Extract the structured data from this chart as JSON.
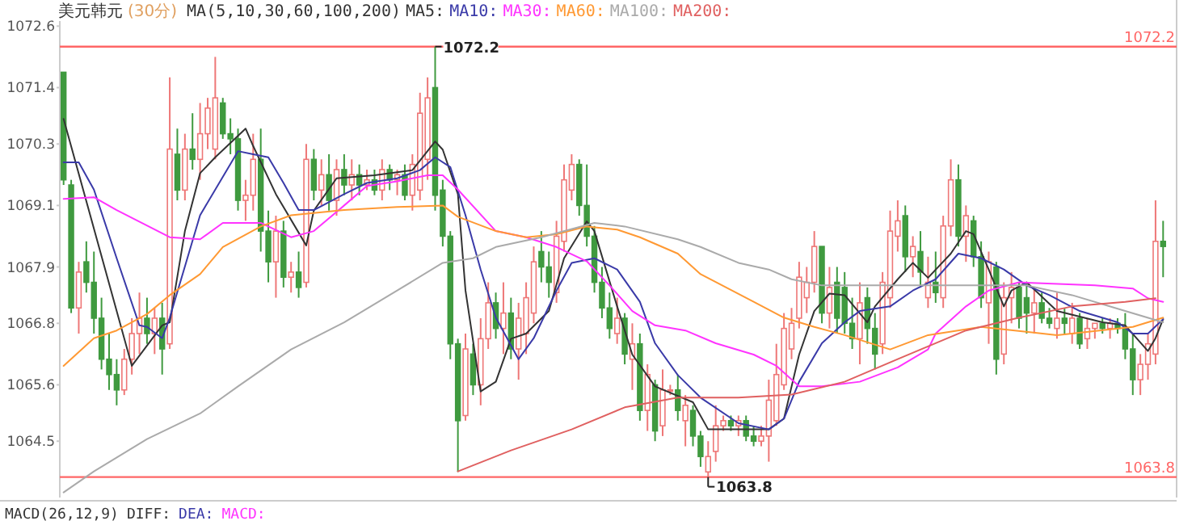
{
  "chart_data": {
    "type": "candlestick",
    "title": "美元韩元",
    "subtitle": "(30分)",
    "legend_title": "MA(5,10,30,60,100,200)",
    "legend": "top",
    "categories": [
      null,
      null,
      null,
      null,
      null,
      null,
      null,
      null,
      null,
      null,
      null,
      null,
      null,
      null,
      null,
      null,
      null,
      null,
      null,
      null,
      null,
      null,
      null,
      null,
      null,
      null,
      null,
      null,
      null,
      null,
      null,
      null,
      null,
      null,
      null,
      null,
      null,
      null,
      null,
      null,
      null,
      null,
      null,
      null,
      null,
      null,
      null,
      null,
      null,
      null,
      null,
      null,
      null,
      null,
      null,
      null,
      null,
      null,
      null,
      null,
      null,
      null,
      null,
      null,
      null,
      null,
      null,
      null,
      null,
      null,
      null,
      null,
      null,
      null,
      null,
      null,
      null,
      null,
      null,
      null,
      null,
      null,
      null,
      null,
      null,
      null,
      null,
      null,
      null,
      null,
      null,
      null,
      null,
      null,
      null,
      null,
      null,
      null,
      null,
      null,
      null,
      null,
      null,
      null,
      null,
      null,
      null,
      null,
      null,
      null,
      null,
      null,
      null,
      null,
      null,
      null,
      null,
      null,
      null,
      null,
      null,
      null,
      null,
      null,
      null,
      null,
      null,
      null,
      null,
      null,
      null,
      null,
      null,
      null,
      null,
      null,
      null,
      null,
      null,
      null,
      null,
      null,
      null,
      null,
      null,
      null
    ],
    "ohlc": [
      [
        1071.7,
        1071.7,
        1069.5,
        1069.6
      ],
      [
        1069.5,
        1069.6,
        1067.0,
        1067.1
      ],
      [
        1067.1,
        1068.0,
        1066.6,
        1067.8
      ],
      [
        1068.0,
        1068.4,
        1067.4,
        1067.6
      ],
      [
        1067.6,
        1068.2,
        1066.6,
        1066.9
      ],
      [
        1066.9,
        1067.3,
        1065.9,
        1066.1
      ],
      [
        1066.1,
        1066.6,
        1065.5,
        1065.8
      ],
      [
        1065.8,
        1066.1,
        1065.2,
        1065.5
      ],
      [
        1065.5,
        1066.3,
        1065.4,
        1066.1
      ],
      [
        1066.1,
        1066.9,
        1065.8,
        1066.6
      ],
      [
        1066.6,
        1067.4,
        1066.2,
        1066.9
      ],
      [
        1066.9,
        1067.3,
        1066.4,
        1066.6
      ],
      [
        1066.6,
        1067.1,
        1066.2,
        1066.9
      ],
      [
        1066.9,
        1067.2,
        1065.8,
        1066.3
      ],
      [
        1066.4,
        1071.6,
        1066.3,
        1070.2
      ],
      [
        1070.1,
        1070.6,
        1069.2,
        1069.4
      ],
      [
        1069.4,
        1070.5,
        1069.2,
        1070.2
      ],
      [
        1070.2,
        1070.9,
        1069.8,
        1070.0
      ],
      [
        1070.0,
        1071.1,
        1069.6,
        1070.5
      ],
      [
        1070.5,
        1071.2,
        1070.2,
        1071.0
      ],
      [
        1070.2,
        1072.0,
        1070.0,
        1071.2
      ],
      [
        1071.1,
        1071.2,
        1070.4,
        1070.5
      ],
      [
        1070.5,
        1070.8,
        1070.1,
        1070.4
      ],
      [
        1070.4,
        1070.6,
        1069.0,
        1069.2
      ],
      [
        1069.2,
        1069.6,
        1068.8,
        1069.3
      ],
      [
        1069.3,
        1070.5,
        1069.0,
        1070.0
      ],
      [
        1070.0,
        1070.6,
        1068.2,
        1068.6
      ],
      [
        1068.6,
        1069.0,
        1067.6,
        1068.0
      ],
      [
        1068.0,
        1068.9,
        1067.3,
        1068.6
      ],
      [
        1068.6,
        1068.8,
        1067.5,
        1067.7
      ],
      [
        1067.7,
        1068.0,
        1067.4,
        1067.8
      ],
      [
        1067.8,
        1068.2,
        1067.3,
        1067.5
      ],
      [
        1067.6,
        1070.3,
        1067.5,
        1070.0
      ],
      [
        1070.0,
        1070.2,
        1069.2,
        1069.4
      ],
      [
        1069.4,
        1070.0,
        1069.1,
        1069.7
      ],
      [
        1069.7,
        1070.1,
        1069.0,
        1069.2
      ],
      [
        1069.2,
        1070.0,
        1068.9,
        1069.8
      ],
      [
        1069.8,
        1070.1,
        1069.3,
        1069.5
      ],
      [
        1069.5,
        1070.0,
        1069.2,
        1069.7
      ],
      [
        1069.7,
        1069.9,
        1069.3,
        1069.5
      ],
      [
        1069.5,
        1069.8,
        1069.4,
        1069.6
      ],
      [
        1069.6,
        1069.8,
        1069.3,
        1069.4
      ],
      [
        1069.4,
        1070.0,
        1069.2,
        1069.8
      ],
      [
        1069.8,
        1069.9,
        1069.4,
        1069.6
      ],
      [
        1069.6,
        1069.8,
        1069.3,
        1069.7
      ],
      [
        1069.7,
        1069.9,
        1069.2,
        1069.3
      ],
      [
        1069.3,
        1070.1,
        1069.0,
        1069.9
      ],
      [
        1069.4,
        1071.3,
        1069.2,
        1070.9
      ],
      [
        1070.0,
        1071.6,
        1069.6,
        1071.2
      ],
      [
        1071.4,
        1072.2,
        1069.0,
        1069.3
      ],
      [
        1069.4,
        1069.6,
        1068.3,
        1068.5
      ],
      [
        1068.5,
        1068.6,
        1066.1,
        1066.4
      ],
      [
        1066.4,
        1066.5,
        1063.9,
        1064.9
      ],
      [
        1065.0,
        1066.6,
        1064.9,
        1066.3
      ],
      [
        1066.2,
        1066.4,
        1065.4,
        1065.6
      ],
      [
        1065.6,
        1066.9,
        1065.2,
        1066.5
      ],
      [
        1066.5,
        1067.6,
        1066.3,
        1067.2
      ],
      [
        1067.2,
        1067.4,
        1066.5,
        1066.7
      ],
      [
        1066.7,
        1067.6,
        1066.2,
        1067.0
      ],
      [
        1067.0,
        1067.3,
        1066.1,
        1066.3
      ],
      [
        1066.3,
        1067.2,
        1065.7,
        1066.9
      ],
      [
        1066.6,
        1067.6,
        1066.2,
        1067.3
      ],
      [
        1067.0,
        1068.3,
        1066.8,
        1068.0
      ],
      [
        1068.2,
        1068.6,
        1067.6,
        1067.9
      ],
      [
        1067.9,
        1068.2,
        1067.3,
        1067.6
      ],
      [
        1067.4,
        1068.8,
        1067.2,
        1068.5
      ],
      [
        1068.4,
        1069.9,
        1068.2,
        1069.6
      ],
      [
        1069.4,
        1070.1,
        1069.2,
        1069.9
      ],
      [
        1069.9,
        1070.0,
        1068.9,
        1069.1
      ],
      [
        1069.1,
        1069.9,
        1068.3,
        1068.5
      ],
      [
        1068.5,
        1068.7,
        1067.4,
        1067.6
      ],
      [
        1067.6,
        1067.9,
        1066.9,
        1067.1
      ],
      [
        1067.1,
        1067.4,
        1066.5,
        1066.7
      ],
      [
        1066.6,
        1067.3,
        1066.4,
        1066.9
      ],
      [
        1066.9,
        1067.0,
        1066.0,
        1066.2
      ],
      [
        1066.1,
        1066.8,
        1065.5,
        1066.4
      ],
      [
        1066.4,
        1066.6,
        1064.9,
        1065.1
      ],
      [
        1065.1,
        1066.0,
        1064.7,
        1065.8
      ],
      [
        1065.6,
        1065.7,
        1064.5,
        1064.7
      ],
      [
        1064.8,
        1065.9,
        1064.6,
        1065.5
      ],
      [
        1065.5,
        1065.6,
        1065.4,
        1065.5
      ],
      [
        1065.5,
        1065.8,
        1064.9,
        1065.1
      ],
      [
        1064.9,
        1065.4,
        1064.4,
        1065.2
      ],
      [
        1065.1,
        1065.2,
        1064.4,
        1064.6
      ],
      [
        1064.6,
        1064.7,
        1064.0,
        1064.2
      ],
      [
        1063.9,
        1064.5,
        1063.8,
        1064.2
      ],
      [
        1064.3,
        1065.2,
        1064.1,
        1064.8
      ],
      [
        1064.8,
        1065.0,
        1064.7,
        1064.9
      ],
      [
        1064.9,
        1065.0,
        1064.7,
        1064.8
      ],
      [
        1064.8,
        1065.0,
        1064.6,
        1064.9
      ],
      [
        1064.9,
        1065.0,
        1064.5,
        1064.6
      ],
      [
        1064.6,
        1064.8,
        1064.4,
        1064.5
      ],
      [
        1064.5,
        1064.8,
        1064.4,
        1064.6
      ],
      [
        1064.6,
        1065.7,
        1064.1,
        1065.3
      ],
      [
        1064.9,
        1066.4,
        1064.8,
        1065.8
      ],
      [
        1065.6,
        1067.0,
        1065.5,
        1066.7
      ],
      [
        1066.3,
        1067.1,
        1066.1,
        1066.8
      ],
      [
        1066.9,
        1068.0,
        1066.7,
        1067.7
      ],
      [
        1067.3,
        1067.9,
        1067.0,
        1067.6
      ],
      [
        1067.6,
        1068.6,
        1067.4,
        1068.3
      ],
      [
        1068.3,
        1068.3,
        1066.8,
        1067.0
      ],
      [
        1067.0,
        1067.9,
        1066.7,
        1067.5
      ],
      [
        1067.6,
        1067.9,
        1066.6,
        1066.9
      ],
      [
        1067.5,
        1067.8,
        1066.6,
        1066.8
      ],
      [
        1066.8,
        1067.3,
        1066.3,
        1066.5
      ],
      [
        1066.5,
        1067.6,
        1066.0,
        1067.2
      ],
      [
        1067.3,
        1067.5,
        1066.4,
        1066.7
      ],
      [
        1066.7,
        1067.0,
        1065.9,
        1066.2
      ],
      [
        1066.4,
        1067.8,
        1066.2,
        1067.6
      ],
      [
        1067.3,
        1069.0,
        1067.1,
        1068.6
      ],
      [
        1068.5,
        1069.2,
        1068.2,
        1068.8
      ],
      [
        1068.9,
        1069.1,
        1067.8,
        1068.1
      ],
      [
        1068.1,
        1068.5,
        1067.7,
        1068.3
      ],
      [
        1068.2,
        1068.6,
        1067.5,
        1067.8
      ],
      [
        1067.3,
        1068.1,
        1067.1,
        1067.6
      ],
      [
        1067.6,
        1068.2,
        1067.2,
        1067.4
      ],
      [
        1067.3,
        1068.9,
        1067.1,
        1068.7
      ],
      [
        1068.7,
        1070.0,
        1068.5,
        1069.6
      ],
      [
        1069.6,
        1069.9,
        1068.3,
        1068.5
      ],
      [
        1068.5,
        1069.1,
        1068.0,
        1068.9
      ],
      [
        1068.8,
        1068.9,
        1067.9,
        1068.1
      ],
      [
        1068.1,
        1068.4,
        1067.1,
        1067.3
      ],
      [
        1067.2,
        1068.2,
        1066.4,
        1068.0
      ],
      [
        1067.9,
        1068.0,
        1065.8,
        1066.1
      ],
      [
        1066.2,
        1067.6,
        1066.0,
        1067.3
      ],
      [
        1067.3,
        1067.8,
        1066.8,
        1067.5
      ],
      [
        1067.5,
        1067.6,
        1066.7,
        1066.9
      ],
      [
        1067.3,
        1067.6,
        1066.6,
        1067.0
      ],
      [
        1067.0,
        1067.5,
        1066.6,
        1067.2
      ],
      [
        1067.2,
        1067.4,
        1066.8,
        1066.9
      ],
      [
        1066.9,
        1067.1,
        1066.7,
        1066.8
      ],
      [
        1066.7,
        1067.4,
        1066.5,
        1066.9
      ],
      [
        1066.9,
        1067.1,
        1066.6,
        1066.8
      ],
      [
        1066.6,
        1067.2,
        1066.4,
        1066.9
      ],
      [
        1066.9,
        1067.0,
        1066.3,
        1066.4
      ],
      [
        1066.5,
        1066.9,
        1066.3,
        1066.7
      ],
      [
        1066.7,
        1066.8,
        1066.5,
        1066.8
      ],
      [
        1066.8,
        1066.9,
        1066.6,
        1066.7
      ],
      [
        1066.7,
        1066.9,
        1066.5,
        1066.8
      ],
      [
        1066.8,
        1066.9,
        1066.6,
        1066.7
      ],
      [
        1066.7,
        1067.0,
        1066.1,
        1066.3
      ],
      [
        1066.3,
        1066.6,
        1065.4,
        1065.7
      ],
      [
        1065.7,
        1066.2,
        1065.4,
        1066.0
      ],
      [
        1066.0,
        1066.6,
        1065.7,
        1066.4
      ],
      [
        1066.2,
        1069.2,
        1066.0,
        1068.4
      ],
      [
        1068.4,
        1068.8,
        1067.7,
        1068.3
      ]
    ],
    "series": [
      {
        "type": "line",
        "name": "MA5:",
        "color": "#333333",
        "values": [
          1070.79,
          null,
          null,
          null,
          null,
          null,
          null,
          null,
          null,
          1065.97,
          null,
          null,
          null,
          1066.76,
          1066.82,
          null,
          1068.6,
          null,
          1069.73,
          null,
          1070.04,
          null,
          null,
          null,
          1070.6,
          1070.26,
          null,
          null,
          1069.32,
          null,
          null,
          null,
          1068.32,
          1069.0,
          null,
          null,
          1069.63,
          null,
          null,
          null,
          null,
          1069.69,
          null,
          null,
          null,
          null,
          1069.79,
          null,
          null,
          1070.35,
          1070.19,
          null,
          1069.32,
          1067.44,
          null,
          1065.47,
          null,
          1065.66,
          null,
          1066.5,
          null,
          1066.6,
          null,
          null,
          1067.04,
          null,
          1068.07,
          null,
          null,
          1068.79,
          1068.6,
          null,
          null,
          1067.13,
          null,
          1066.19,
          null,
          null,
          1065.57,
          null,
          null,
          null,
          null,
          1065.26,
          null,
          1064.73,
          null,
          null,
          null,
          null,
          1064.73,
          null,
          null,
          1064.73,
          null,
          1064.94,
          null,
          1066.19,
          null,
          1067.04,
          null,
          1067.38,
          null,
          1067.35,
          null,
          null,
          1066.82,
          1067.13,
          null,
          null,
          1067.66,
          null,
          1067.98,
          null,
          1067.69,
          null,
          null,
          1068.16,
          null,
          1068.6,
          1068.54,
          null,
          1067.85,
          null,
          1067.13,
          1067.44,
          null,
          1067.6,
          null,
          null,
          null,
          1067.04,
          null,
          null,
          null,
          null,
          null,
          1066.82,
          null,
          null,
          1066.76,
          null,
          null,
          1066.26,
          1066.51,
          1066.88
        ]
      },
      {
        "type": "line",
        "name": "MA10:",
        "color": "#3a3aa8",
        "values": [
          1069.94,
          null,
          1069.94,
          null,
          1069.41,
          null,
          null,
          1068.07,
          null,
          null,
          1066.76,
          1066.73,
          null,
          1066.51,
          1066.91,
          null,
          null,
          null,
          1068.91,
          null,
          null,
          null,
          null,
          1070.16,
          null,
          1070.1,
          null,
          1070.04,
          null,
          1069.54,
          null,
          1069.01,
          null,
          1069.01,
          null,
          null,
          null,
          1069.32,
          null,
          null,
          1069.54,
          null,
          null,
          null,
          1069.63,
          null,
          null,
          1069.79,
          null,
          1070.04,
          null,
          1069.85,
          null,
          1068.91,
          null,
          1067.85,
          null,
          1066.91,
          null,
          null,
          1066.1,
          null,
          1066.51,
          null,
          null,
          1067.44,
          null,
          1067.98,
          null,
          null,
          1068.07,
          null,
          null,
          1067.85,
          null,
          null,
          1067.22,
          null,
          1066.41,
          null,
          null,
          1065.79,
          null,
          null,
          1065.35,
          null,
          null,
          null,
          null,
          1064.85,
          null,
          null,
          null,
          1064.73,
          null,
          1064.94,
          null,
          1065.66,
          null,
          null,
          1066.41,
          null,
          null,
          1066.82,
          null,
          1067.04,
          null,
          null,
          null,
          1067.13,
          null,
          null,
          1067.44,
          null,
          null,
          1067.66,
          null,
          null,
          1068.16,
          null,
          null,
          1068.07,
          null,
          null,
          1067.85,
          null,
          null,
          1067.54,
          null,
          null,
          1067.35,
          null,
          null,
          null,
          1067.04,
          null,
          null,
          null,
          null,
          1066.82,
          null,
          1066.6,
          null,
          1066.6,
          null,
          1066.88
        ]
      },
      {
        "type": "line",
        "name": "MA30:",
        "color": "#ff33ff",
        "values": [
          1069.23,
          null,
          null,
          null,
          1069.26,
          null,
          null,
          1069.01,
          null,
          null,
          null,
          null,
          null,
          null,
          1068.48,
          null,
          null,
          null,
          1068.44,
          null,
          null,
          1068.76,
          null,
          null,
          null,
          null,
          1068.76,
          null,
          null,
          null,
          1068.48,
          null,
          null,
          1068.6,
          null,
          null,
          null,
          1069.1,
          null,
          null,
          1069.48,
          null,
          null,
          null,
          1069.57,
          null,
          null,
          null,
          1069.69,
          null,
          1069.69,
          null,
          1069.41,
          null,
          null,
          null,
          null,
          1068.6,
          null,
          null,
          null,
          1068.48,
          null,
          null,
          null,
          1068.29,
          null,
          null,
          null,
          1068.01,
          null,
          null,
          1067.54,
          null,
          null,
          1067.04,
          null,
          null,
          1066.76,
          null,
          null,
          null,
          1066.66,
          null,
          null,
          null,
          1066.41,
          null,
          null,
          null,
          null,
          1066.19,
          null,
          null,
          1065.97,
          null,
          null,
          1065.57,
          null,
          null,
          1065.57,
          null,
          null,
          null,
          null,
          1065.66,
          null,
          null,
          null,
          null,
          1065.94,
          null,
          null,
          null,
          1066.29,
          1066.6,
          null,
          null,
          null,
          1067.13,
          null,
          null,
          1067.44,
          null,
          null,
          null,
          1067.6,
          null,
          null,
          null,
          null,
          null,
          null,
          null,
          null,
          null,
          1067.54,
          null,
          null,
          null,
          null,
          1067.48,
          null,
          1067.29,
          null,
          1067.22
        ]
      },
      {
        "type": "line",
        "name": "MA60:",
        "color": "#ff9933",
        "values": [
          1065.97,
          null,
          null,
          null,
          1066.51,
          null,
          null,
          1066.66,
          null,
          null,
          null,
          1066.98,
          null,
          null,
          1067.35,
          null,
          null,
          null,
          1067.76,
          null,
          null,
          1068.29,
          null,
          null,
          null,
          null,
          1068.69,
          null,
          null,
          null,
          1068.91,
          null,
          null,
          null,
          null,
          null,
          null,
          1069.01,
          null,
          null,
          null,
          null,
          null,
          null,
          1069.07,
          null,
          null,
          null,
          null,
          null,
          1069.1,
          null,
          1068.88,
          null,
          null,
          null,
          null,
          1068.6,
          null,
          null,
          null,
          1068.48,
          null,
          null,
          null,
          1068.54,
          null,
          null,
          null,
          1068.69,
          null,
          null,
          null,
          1068.63,
          null,
          null,
          1068.48,
          null,
          null,
          null,
          null,
          1068.16,
          null,
          null,
          1067.76,
          null,
          null,
          null,
          null,
          null,
          null,
          1067.22,
          null,
          null,
          null,
          1066.91,
          null,
          null,
          null,
          1066.73,
          null,
          null,
          null,
          1066.57,
          null,
          null,
          null,
          null,
          null,
          1066.29,
          null,
          null,
          null,
          null,
          1066.57,
          null,
          null,
          null,
          null,
          null,
          null,
          1066.73,
          null,
          null,
          null,
          null,
          null,
          null,
          null,
          null,
          null,
          1066.57,
          null,
          null,
          null,
          null,
          null,
          null,
          null,
          null,
          null,
          1066.73,
          null,
          null,
          null,
          1066.91
        ]
      },
      {
        "type": "line",
        "name": "MA100:",
        "color": "#aaaaaa",
        "values": [
          1063.5,
          null,
          null,
          null,
          1063.91,
          null,
          null,
          null,
          null,
          null,
          null,
          1064.54,
          null,
          null,
          null,
          null,
          null,
          null,
          1065.04,
          null,
          null,
          null,
          null,
          1065.57,
          null,
          null,
          null,
          null,
          null,
          null,
          1066.29,
          null,
          null,
          null,
          null,
          null,
          null,
          1066.82,
          null,
          null,
          null,
          null,
          null,
          null,
          1067.44,
          null,
          null,
          null,
          null,
          null,
          1067.98,
          null,
          null,
          null,
          1068.07,
          null,
          null,
          1068.29,
          null,
          null,
          null,
          null,
          null,
          1068.48,
          null,
          null,
          null,
          null,
          null,
          null,
          1068.76,
          null,
          null,
          null,
          1068.69,
          null,
          null,
          null,
          null,
          null,
          null,
          1068.44,
          null,
          null,
          1068.29,
          null,
          null,
          null,
          null,
          1067.98,
          null,
          null,
          null,
          1067.85,
          null,
          null,
          1067.66,
          null,
          null,
          null,
          1067.54,
          null,
          null,
          null,
          null,
          null,
          null,
          1067.54,
          null,
          null,
          null,
          null,
          null,
          null,
          null,
          null,
          null,
          null,
          null,
          1067.54,
          null,
          null,
          null,
          null,
          null,
          null,
          null,
          1067.54,
          null,
          null,
          null,
          null,
          null,
          1067.35,
          null,
          null,
          null,
          null,
          null,
          null,
          1067.04,
          null,
          null,
          null,
          null,
          1066.82
        ]
      },
      {
        "type": "line",
        "name": "MA200:",
        "color": "#e06060",
        "values": [
          null,
          null,
          null,
          null,
          null,
          null,
          null,
          null,
          null,
          null,
          null,
          null,
          null,
          null,
          null,
          null,
          null,
          null,
          null,
          null,
          null,
          null,
          null,
          null,
          null,
          null,
          null,
          null,
          null,
          null,
          null,
          null,
          null,
          null,
          null,
          null,
          null,
          null,
          null,
          null,
          null,
          null,
          null,
          null,
          null,
          null,
          null,
          null,
          null,
          null,
          null,
          null,
          1063.91,
          null,
          null,
          null,
          null,
          null,
          null,
          1064.32,
          null,
          null,
          null,
          null,
          null,
          null,
          null,
          1064.73,
          null,
          null,
          null,
          null,
          null,
          null,
          1065.16,
          null,
          null,
          null,
          null,
          null,
          null,
          1065.35,
          null,
          null,
          null,
          null,
          null,
          null,
          null,
          1065.35,
          null,
          null,
          null,
          null,
          null,
          null,
          1065.41,
          null,
          null,
          null,
          null,
          null,
          null,
          1065.66,
          null,
          null,
          null,
          null,
          null,
          null,
          1066.1,
          null,
          null,
          null,
          null,
          null,
          null,
          null,
          null,
          1066.66,
          null,
          null,
          null,
          null,
          null,
          null,
          1066.91,
          null,
          null,
          null,
          null,
          null,
          null,
          1067.13,
          null,
          null,
          null,
          null,
          null,
          null,
          1067.22,
          null,
          null,
          null,
          1067.29,
          null
        ]
      }
    ],
    "ylim": [
      1063.4,
      1072.7
    ],
    "yticks": [
      1072.6,
      1071.4,
      1070.3,
      1069.1,
      1067.9,
      1066.8,
      1065.6,
      1064.5
    ],
    "ref_lines": [
      {
        "axis": "y",
        "value": 1072.2,
        "label": "1072.2",
        "color": "#ff6666"
      },
      {
        "axis": "y",
        "value": 1063.8,
        "label": "1063.8",
        "color": "#ff6666"
      }
    ],
    "annotations": [
      {
        "text": "1072.2",
        "y": 1072.2
      },
      {
        "text": "1063.8",
        "y": 1063.8
      },
      "MACD(26,12,9)",
      "DIFF:",
      "DEA:",
      "MACD:"
    ]
  }
}
